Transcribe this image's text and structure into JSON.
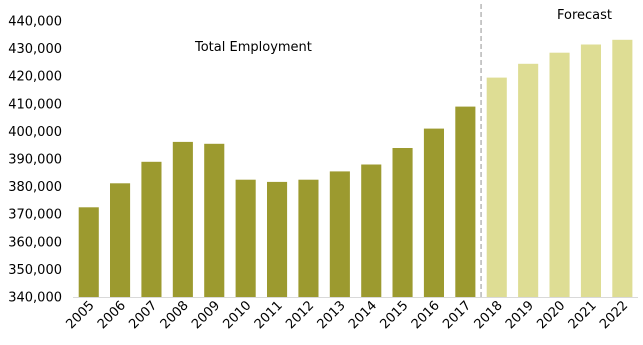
{
  "chart_data": {
    "type": "bar",
    "title": "",
    "xlabel": "",
    "ylabel": "",
    "ylim": [
      340000,
      440000
    ],
    "yticks": [
      340000,
      350000,
      360000,
      370000,
      380000,
      390000,
      400000,
      410000,
      420000,
      430000,
      440000
    ],
    "ytick_labels": [
      "340,000",
      "350,000",
      "360,000",
      "370,000",
      "380,000",
      "390,000",
      "400,000",
      "410,000",
      "420,000",
      "430,000",
      "440,000"
    ],
    "categories": [
      "2005",
      "2006",
      "2007",
      "2008",
      "2009",
      "2010",
      "2011",
      "2012",
      "2013",
      "2014",
      "2015",
      "2016",
      "2017",
      "2018",
      "2019",
      "2020",
      "2021",
      "2022"
    ],
    "values": [
      372500,
      381200,
      389000,
      396200,
      395500,
      382500,
      381700,
      382500,
      385500,
      388000,
      394000,
      401000,
      409000,
      419500,
      424500,
      428500,
      431500,
      433200
    ],
    "forecast_start_index": 13,
    "grid": false,
    "annotations": {
      "series_label": "Total Employment",
      "forecast_label": "Forecast"
    },
    "colors": {
      "actual": "#9c9a2f",
      "forecast": "#dedd94",
      "divider": "#a6a6a6",
      "axis": "#d9d9d9"
    }
  }
}
